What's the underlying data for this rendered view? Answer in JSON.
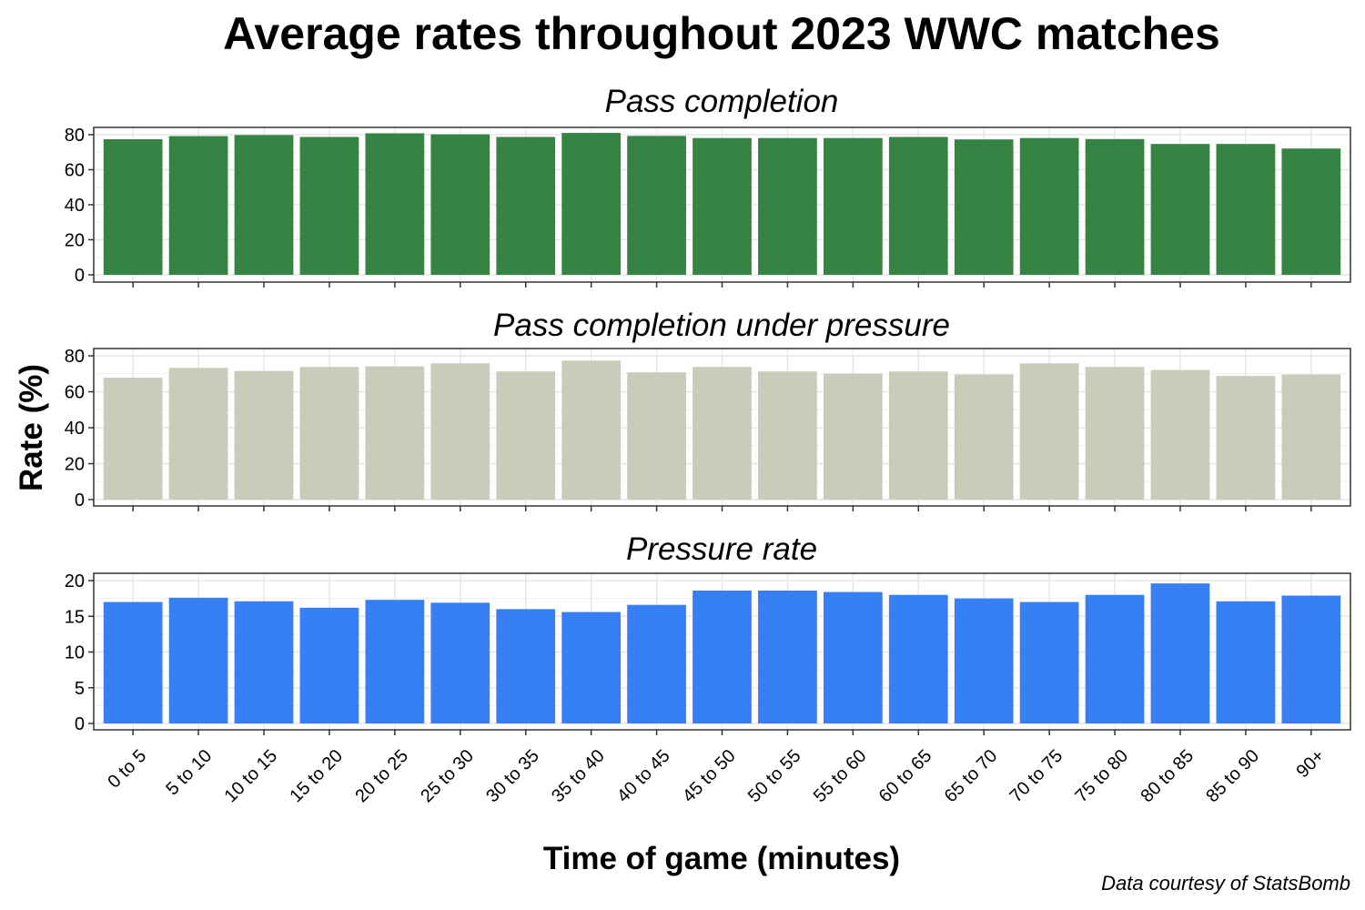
{
  "chart_data": {
    "type": "bar",
    "title": "Average rates throughout 2023 WWC matches",
    "xlabel": "Time of game (minutes)",
    "ylabel": "Rate (%)",
    "caption": "Data courtesy of StatsBomb",
    "grid": true,
    "categories": [
      "0 to 5",
      "5 to 10",
      "10 to 15",
      "15 to 20",
      "20 to 25",
      "25 to 30",
      "30 to 35",
      "35 to 40",
      "40 to 45",
      "45 to 50",
      "50 to 55",
      "55 to 60",
      "60 to 65",
      "65 to 70",
      "70 to 75",
      "75 to 80",
      "80 to 85",
      "85 to 90",
      "90+"
    ],
    "panels": [
      {
        "name": "Pass completion",
        "color": "#358443",
        "ylim": [
          0,
          83
        ],
        "yticks": [
          0,
          20,
          40,
          60,
          80
        ],
        "values": [
          77.4,
          79.2,
          79.8,
          78.7,
          80.8,
          80.2,
          78.7,
          81.0,
          79.3,
          78.1,
          78.1,
          78.1,
          78.7,
          77.3,
          78.1,
          77.5,
          74.7,
          74.7,
          72.1
        ]
      },
      {
        "name": "Pass completion under pressure",
        "color": "#cacbb9",
        "ylim": [
          0,
          80
        ],
        "yticks": [
          0,
          20,
          40,
          60,
          80
        ],
        "values": [
          67.8,
          73.3,
          71.6,
          73.8,
          74.1,
          75.8,
          71.3,
          77.3,
          70.8,
          73.8,
          71.3,
          70.1,
          71.3,
          69.6,
          75.8,
          73.8,
          72.1,
          68.8,
          69.6
        ]
      },
      {
        "name": "Pressure rate",
        "color": "#367ff5",
        "ylim": [
          0,
          20
        ],
        "yticks": [
          0,
          5,
          10,
          15,
          20
        ],
        "values": [
          17.0,
          17.6,
          17.1,
          16.2,
          17.3,
          16.9,
          16.0,
          15.6,
          16.6,
          18.6,
          18.6,
          18.4,
          18.0,
          17.5,
          17.0,
          18.0,
          19.6,
          17.1,
          17.9
        ]
      }
    ]
  }
}
